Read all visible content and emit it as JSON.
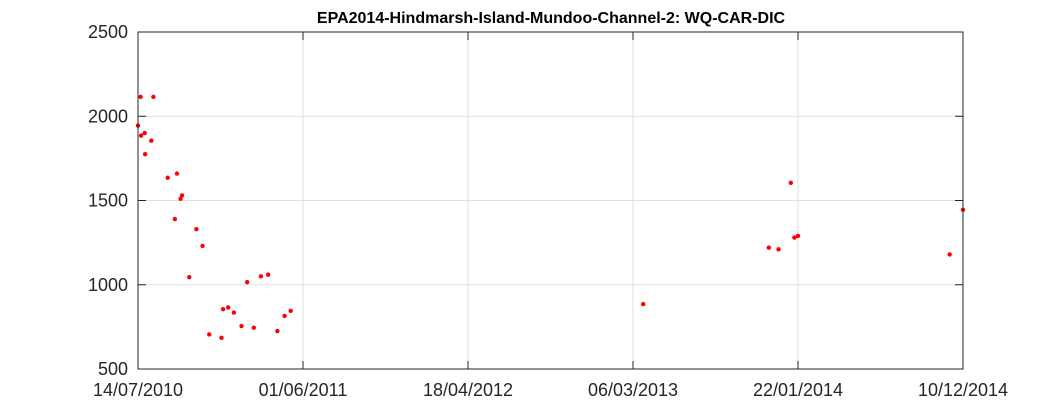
{
  "chart_data": {
    "type": "scatter",
    "title": "EPA2014-Hindmarsh-Island-Mundoo-Channel-2: WQ-CAR-DIC",
    "xlabel": "",
    "ylabel": "",
    "x_axis_type": "date",
    "xlim": [
      "2010-07-14",
      "2014-12-10"
    ],
    "ylim": [
      500,
      2500
    ],
    "x_ticks": [
      "2010-07-14",
      "2011-06-01",
      "2012-04-18",
      "2013-03-06",
      "2014-01-22",
      "2014-12-10"
    ],
    "x_tick_labels": [
      "14/07/2010",
      "01/06/2011",
      "18/04/2012",
      "06/03/2013",
      "22/01/2014",
      "10/12/2014"
    ],
    "y_ticks": [
      500,
      1000,
      1500,
      2000,
      2500
    ],
    "y_tick_labels": [
      "500",
      "1000",
      "1500",
      "2000",
      "2500"
    ],
    "grid": true,
    "marker_color": "#ff0000",
    "series": [
      {
        "points": [
          {
            "x": "2010-07-14",
            "y": 1945
          },
          {
            "x": "2010-07-19",
            "y": 2115
          },
          {
            "x": "2010-07-20",
            "y": 1885
          },
          {
            "x": "2010-07-27",
            "y": 1900
          },
          {
            "x": "2010-07-28",
            "y": 1775
          },
          {
            "x": "2010-08-09",
            "y": 1855
          },
          {
            "x": "2010-08-13",
            "y": 2115
          },
          {
            "x": "2010-09-10",
            "y": 1635
          },
          {
            "x": "2010-09-24",
            "y": 1390
          },
          {
            "x": "2010-09-28",
            "y": 1660
          },
          {
            "x": "2010-10-05",
            "y": 1510
          },
          {
            "x": "2010-10-08",
            "y": 1530
          },
          {
            "x": "2010-10-22",
            "y": 1045
          },
          {
            "x": "2010-11-05",
            "y": 1330
          },
          {
            "x": "2010-11-17",
            "y": 1230
          },
          {
            "x": "2010-11-30",
            "y": 705
          },
          {
            "x": "2010-12-24",
            "y": 685
          },
          {
            "x": "2010-12-27",
            "y": 855
          },
          {
            "x": "2011-01-06",
            "y": 865
          },
          {
            "x": "2011-01-17",
            "y": 835
          },
          {
            "x": "2011-02-01",
            "y": 755
          },
          {
            "x": "2011-02-12",
            "y": 1015
          },
          {
            "x": "2011-02-25",
            "y": 745
          },
          {
            "x": "2011-03-11",
            "y": 1050
          },
          {
            "x": "2011-03-25",
            "y": 1060
          },
          {
            "x": "2011-04-12",
            "y": 725
          },
          {
            "x": "2011-04-26",
            "y": 815
          },
          {
            "x": "2011-05-08",
            "y": 845
          },
          {
            "x": "2013-03-26",
            "y": 885
          },
          {
            "x": "2013-11-26",
            "y": 1220
          },
          {
            "x": "2013-12-15",
            "y": 1210
          },
          {
            "x": "2014-01-08",
            "y": 1605
          },
          {
            "x": "2014-01-15",
            "y": 1280
          },
          {
            "x": "2014-01-22",
            "y": 1290
          },
          {
            "x": "2014-11-14",
            "y": 1180
          },
          {
            "x": "2014-12-10",
            "y": 1445
          }
        ]
      }
    ]
  }
}
